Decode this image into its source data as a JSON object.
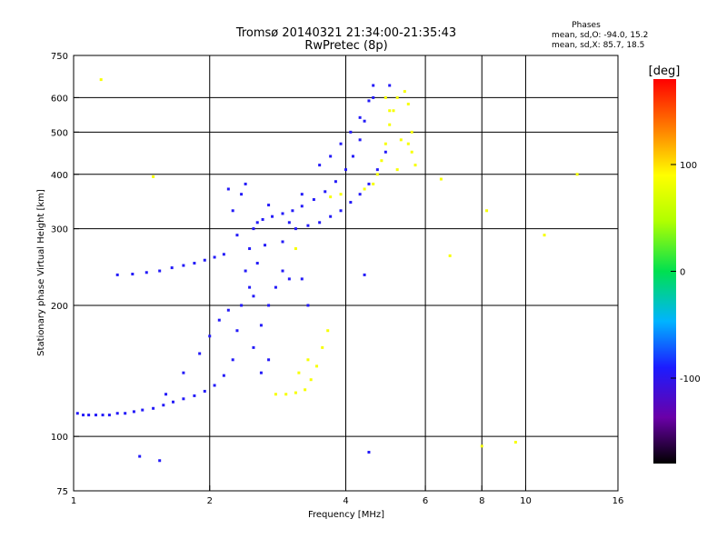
{
  "header": {
    "title": "Tromsø 20140321 21:34:00-21:35:43",
    "subtitle": "RwPretec (8p)"
  },
  "stats": {
    "heading": "Phases",
    "line_o": "mean, sd,O: -94.0, 15.2",
    "line_x": "mean, sd,X: 85.7, 18.5"
  },
  "chart_data": {
    "type": "scatter",
    "title": "Tromsø 20140321 21:34:00-21:35:43",
    "subtitle": "RwPretec (8p)",
    "xlabel": "Frequency [MHz]",
    "ylabel": "Stationary phase Virtual Height [km]",
    "xscale": "log",
    "yscale": "log",
    "xlim": [
      1,
      16
    ],
    "ylim": [
      75,
      750
    ],
    "x_ticks": [
      1,
      2,
      4,
      6,
      8,
      10,
      16
    ],
    "y_ticks": [
      75,
      100,
      200,
      300,
      400,
      500,
      600,
      750
    ],
    "x_grid": [
      2,
      4,
      6,
      8,
      10
    ],
    "y_grid": [
      100,
      200,
      300,
      400,
      500,
      600
    ],
    "colorbar": {
      "label": "[deg]",
      "range": [
        -180,
        180
      ],
      "ticks": [
        100,
        0,
        -100
      ]
    },
    "series": [
      {
        "name": "O-mode echo traces",
        "mean_phase": -94.0,
        "sd_phase": 15.2,
        "points": [
          [
            1.02,
            113
          ],
          [
            1.05,
            112
          ],
          [
            1.08,
            112
          ],
          [
            1.12,
            112
          ],
          [
            1.16,
            112
          ],
          [
            1.2,
            112
          ],
          [
            1.25,
            113
          ],
          [
            1.3,
            113
          ],
          [
            1.36,
            114
          ],
          [
            1.42,
            115
          ],
          [
            1.5,
            116
          ],
          [
            1.58,
            118
          ],
          [
            1.66,
            120
          ],
          [
            1.75,
            122
          ],
          [
            1.85,
            124
          ],
          [
            1.95,
            127
          ],
          [
            2.05,
            131
          ],
          [
            2.15,
            138
          ],
          [
            2.25,
            150
          ],
          [
            2.3,
            175
          ],
          [
            2.35,
            200
          ],
          [
            2.4,
            240
          ],
          [
            2.45,
            270
          ],
          [
            2.5,
            300
          ],
          [
            2.55,
            310
          ],
          [
            2.62,
            315
          ],
          [
            2.75,
            320
          ],
          [
            2.9,
            325
          ],
          [
            3.05,
            330
          ],
          [
            3.2,
            338
          ],
          [
            3.4,
            350
          ],
          [
            3.6,
            365
          ],
          [
            3.8,
            385
          ],
          [
            4.0,
            410
          ],
          [
            4.15,
            440
          ],
          [
            4.3,
            480
          ],
          [
            4.4,
            530
          ],
          [
            4.5,
            590
          ],
          [
            4.6,
            640
          ],
          [
            1.25,
            235
          ],
          [
            1.35,
            236
          ],
          [
            1.45,
            238
          ],
          [
            1.55,
            240
          ],
          [
            1.65,
            244
          ],
          [
            1.75,
            247
          ],
          [
            1.85,
            250
          ],
          [
            1.95,
            254
          ],
          [
            2.05,
            258
          ],
          [
            2.15,
            262
          ],
          [
            1.6,
            125
          ],
          [
            1.75,
            140
          ],
          [
            1.9,
            155
          ],
          [
            2.0,
            170
          ],
          [
            2.1,
            185
          ],
          [
            2.2,
            195
          ],
          [
            2.25,
            330
          ],
          [
            2.35,
            360
          ],
          [
            2.4,
            380
          ],
          [
            2.2,
            370
          ],
          [
            2.5,
            160
          ],
          [
            2.6,
            180
          ],
          [
            2.7,
            200
          ],
          [
            2.8,
            220
          ],
          [
            2.9,
            240
          ],
          [
            2.6,
            140
          ],
          [
            2.7,
            150
          ],
          [
            2.45,
            220
          ],
          [
            2.55,
            250
          ],
          [
            2.65,
            275
          ],
          [
            3.1,
            300
          ],
          [
            3.3,
            305
          ],
          [
            3.5,
            310
          ],
          [
            3.7,
            320
          ],
          [
            3.9,
            330
          ],
          [
            4.1,
            345
          ],
          [
            4.3,
            360
          ],
          [
            4.5,
            380
          ],
          [
            4.7,
            410
          ],
          [
            4.9,
            450
          ],
          [
            3.5,
            420
          ],
          [
            3.7,
            440
          ],
          [
            3.9,
            470
          ],
          [
            4.1,
            500
          ],
          [
            4.3,
            540
          ],
          [
            4.6,
            600
          ],
          [
            3.0,
            230
          ],
          [
            3.2,
            230
          ],
          [
            3.3,
            200
          ],
          [
            4.4,
            235
          ],
          [
            5.0,
            640
          ],
          [
            1.4,
            90
          ],
          [
            1.55,
            88
          ],
          [
            4.5,
            92
          ],
          [
            3.0,
            310
          ],
          [
            2.9,
            280
          ],
          [
            3.2,
            360
          ],
          [
            2.7,
            340
          ],
          [
            2.5,
            210
          ],
          [
            2.3,
            290
          ]
        ]
      },
      {
        "name": "X-mode echo traces",
        "mean_phase": 85.7,
        "sd_phase": 18.5,
        "points": [
          [
            2.8,
            125
          ],
          [
            2.95,
            125
          ],
          [
            3.1,
            126
          ],
          [
            3.25,
            128
          ],
          [
            3.35,
            135
          ],
          [
            3.45,
            145
          ],
          [
            3.55,
            160
          ],
          [
            3.65,
            175
          ],
          [
            3.3,
            150
          ],
          [
            3.15,
            140
          ],
          [
            4.7,
            400
          ],
          [
            4.8,
            430
          ],
          [
            4.9,
            470
          ],
          [
            5.0,
            520
          ],
          [
            5.1,
            560
          ],
          [
            5.2,
            600
          ],
          [
            5.4,
            620
          ],
          [
            5.5,
            580
          ],
          [
            5.6,
            500
          ],
          [
            5.7,
            420
          ],
          [
            5.6,
            450
          ],
          [
            5.5,
            470
          ],
          [
            5.3,
            480
          ],
          [
            5.0,
            560
          ],
          [
            4.9,
            600
          ],
          [
            4.6,
            380
          ],
          [
            4.4,
            370
          ],
          [
            3.9,
            360
          ],
          [
            3.7,
            355
          ],
          [
            5.2,
            410
          ],
          [
            1.15,
            660
          ],
          [
            1.5,
            395
          ],
          [
            6.5,
            390
          ],
          [
            8.0,
            95
          ],
          [
            9.5,
            97
          ],
          [
            8.2,
            330
          ],
          [
            6.8,
            260
          ],
          [
            3.1,
            270
          ],
          [
            13,
            400
          ],
          [
            11,
            290
          ]
        ]
      }
    ]
  }
}
